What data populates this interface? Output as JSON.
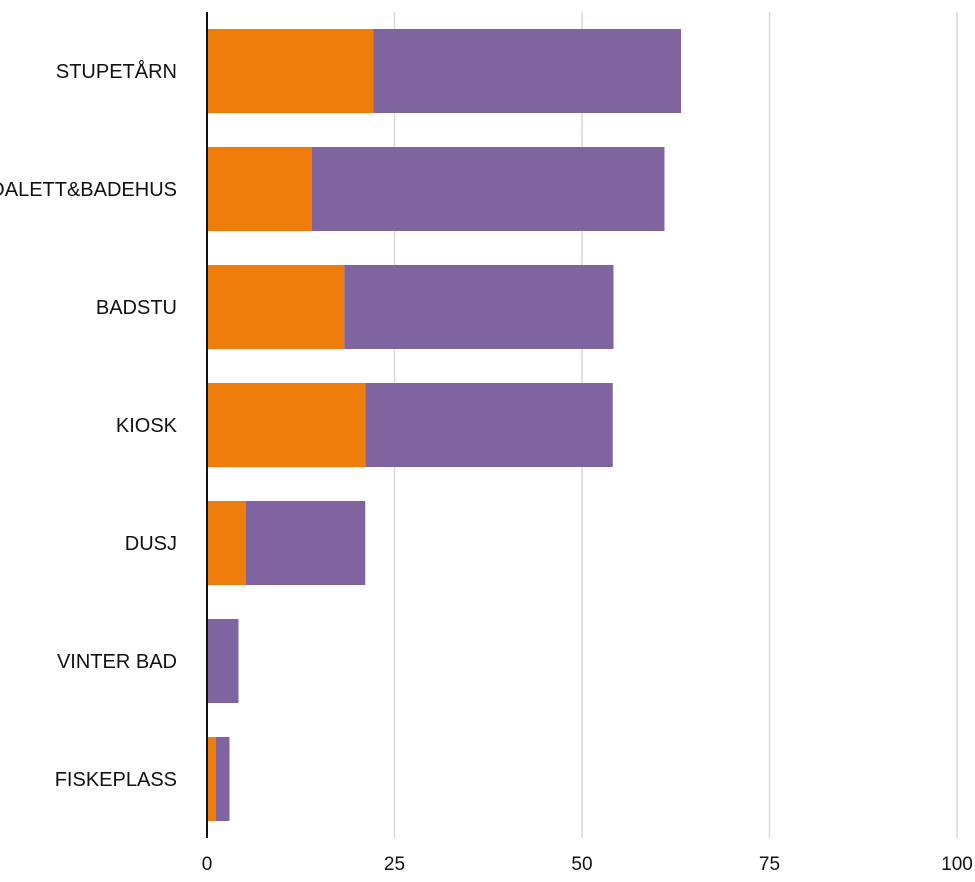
{
  "chart_data": {
    "type": "bar",
    "orientation": "horizontal",
    "stacked": true,
    "categories": [
      "STUPETÅRN",
      "TOALETT&BADEHUS",
      "BADSTU",
      "KIOSK",
      "DUSJ",
      "VINTER BAD",
      "FISKEPLASS"
    ],
    "series": [
      {
        "values": [
          22.2,
          14,
          18.3,
          21.1,
          5.2,
          0,
          1.2
        ],
        "color": "#ee7d0c"
      },
      {
        "values": [
          41,
          47,
          35.9,
          33,
          15.9,
          4.2,
          1.8
        ],
        "color": "#7f64a0"
      }
    ],
    "xlim": [
      0,
      100
    ],
    "xticks": [
      0,
      25,
      50,
      75,
      100
    ],
    "title": "",
    "xlabel": "",
    "ylabel": "",
    "grid": "vertical",
    "legend": "none"
  }
}
